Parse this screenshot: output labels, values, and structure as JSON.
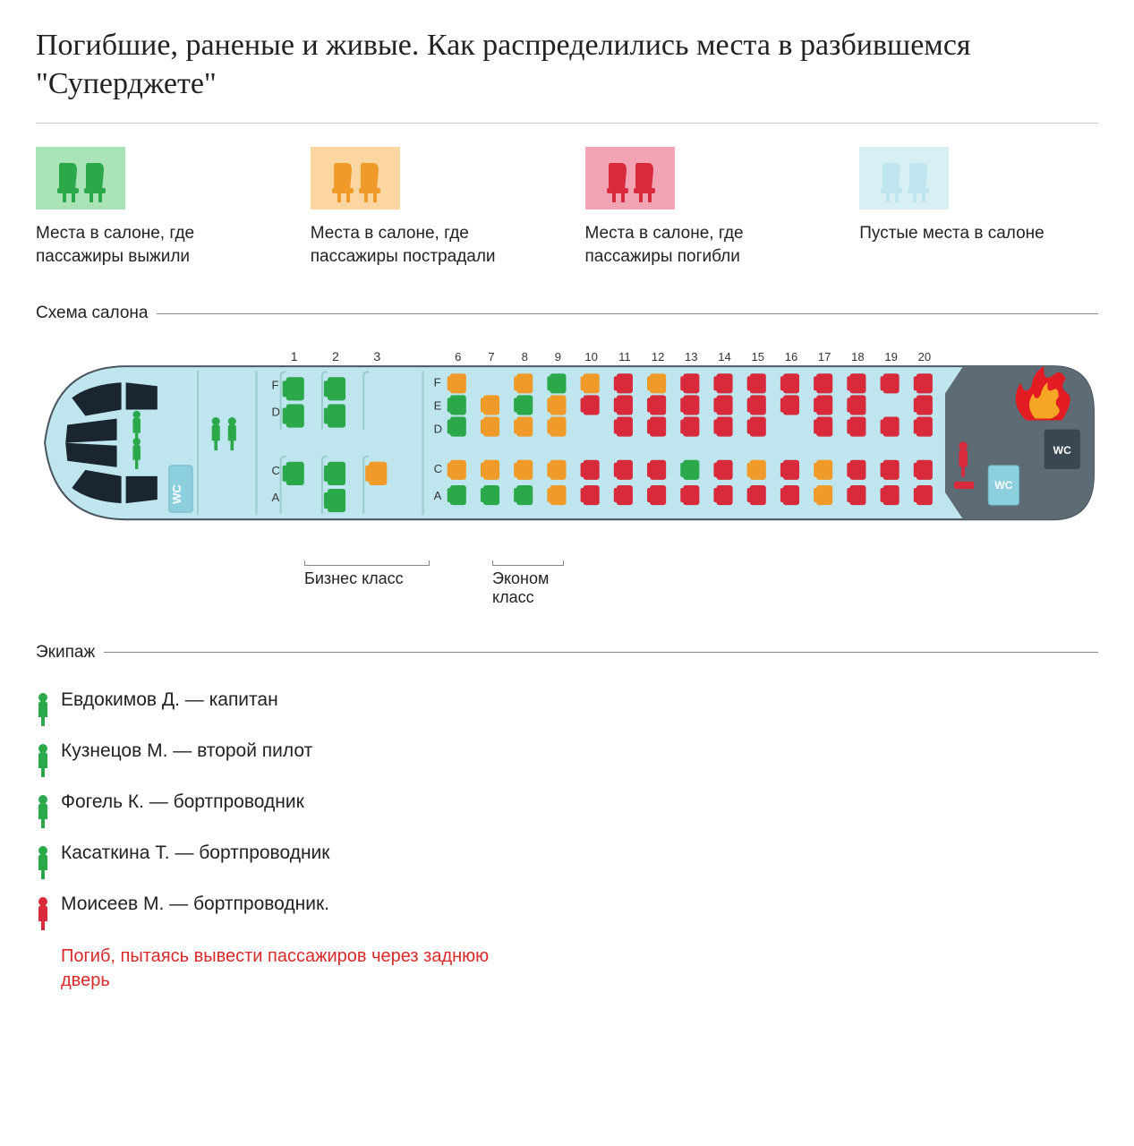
{
  "title": "Погибшие, раненые и живые.\nКак распределились места в разбившемся \"Суперджете\"",
  "colors": {
    "survived": "#2aa84a",
    "survived_bg": "#a9e3b7",
    "injured": "#f09a2a",
    "injured_bg": "#fbd6a0",
    "dead": "#d82a3a",
    "dead_bg": "#f2a3b4",
    "empty": "#bfe6ef",
    "empty_bg": "#d8eff4",
    "cabin": "#bfe6ef",
    "cabin_stroke": "#4a5560",
    "tail_dark": "#5d6b75",
    "fire1": "#e31b23",
    "fire2": "#f5a623",
    "wc_text": "#ffffff",
    "note_red": "#d82a2a"
  },
  "legend": [
    {
      "key": "survived",
      "text": "Места в салоне, где пассажиры выжили"
    },
    {
      "key": "injured",
      "text": "Места в салоне, где пассажиры пострадали"
    },
    {
      "key": "dead",
      "text": "Места в салоне, где пассажиры погибли"
    },
    {
      "key": "empty",
      "text": "Пустые места в салоне"
    }
  ],
  "section_cabin": "Схема салона",
  "section_crew": "Экипаж",
  "class_labels": {
    "business": "Бизнес класс",
    "economy": "Эконом класс"
  },
  "wc_label": "WC",
  "business_rows": [
    "1",
    "2",
    "3"
  ],
  "business_letters_top": [
    "F",
    "D"
  ],
  "business_letters_bot": [
    "C",
    "A"
  ],
  "economy_rows": [
    "6",
    "7",
    "8",
    "9",
    "10",
    "11",
    "12",
    "13",
    "14",
    "15",
    "16",
    "17",
    "18",
    "19",
    "20"
  ],
  "economy_letters_top": [
    "F",
    "E",
    "D"
  ],
  "economy_letters_bot": [
    "C",
    "A"
  ],
  "business_seats": {
    "top": [
      [
        "survived",
        "survived"
      ],
      [
        "survived",
        "survived"
      ],
      [
        "empty",
        "empty"
      ]
    ],
    "bot": [
      [
        "survived",
        "empty"
      ],
      [
        "survived",
        "survived"
      ],
      [
        "injured",
        "empty"
      ]
    ]
  },
  "economy_seats": {
    "top": [
      [
        "injured",
        "survived",
        "survived"
      ],
      [
        "empty",
        "injured",
        "injured"
      ],
      [
        "injured",
        "survived",
        "injured"
      ],
      [
        "survived",
        "injured",
        "injured"
      ],
      [
        "injured",
        "dead",
        "empty"
      ],
      [
        "dead",
        "dead",
        "dead"
      ],
      [
        "injured",
        "dead",
        "dead"
      ],
      [
        "dead",
        "dead",
        "dead"
      ],
      [
        "dead",
        "dead",
        "dead"
      ],
      [
        "dead",
        "dead",
        "dead"
      ],
      [
        "dead",
        "dead",
        "empty"
      ],
      [
        "dead",
        "dead",
        "dead"
      ],
      [
        "dead",
        "dead",
        "dead"
      ],
      [
        "dead",
        "empty",
        "dead"
      ],
      [
        "dead",
        "dead",
        "dead"
      ]
    ],
    "bot": [
      [
        "injured",
        "survived"
      ],
      [
        "injured",
        "survived"
      ],
      [
        "injured",
        "survived"
      ],
      [
        "injured",
        "injured"
      ],
      [
        "dead",
        "dead"
      ],
      [
        "dead",
        "dead"
      ],
      [
        "dead",
        "dead"
      ],
      [
        "survived",
        "dead"
      ],
      [
        "dead",
        "dead"
      ],
      [
        "injured",
        "dead"
      ],
      [
        "dead",
        "dead"
      ],
      [
        "injured",
        "injured"
      ],
      [
        "dead",
        "dead"
      ],
      [
        "dead",
        "dead"
      ],
      [
        "dead",
        "dead"
      ]
    ]
  },
  "crew": [
    {
      "color": "survived",
      "name": "Евдокимов Д. — капитан"
    },
    {
      "color": "survived",
      "name": "Кузнецов М. — второй пилот"
    },
    {
      "color": "survived",
      "name": "Фогель К. — бортпроводник"
    },
    {
      "color": "survived",
      "name": "Касаткина Т. — бортпроводник"
    },
    {
      "color": "dead",
      "name": "Моисеев М. — бортпроводник.",
      "note": "Погиб, пытаясь вывести пассажиров через заднюю дверь"
    }
  ]
}
